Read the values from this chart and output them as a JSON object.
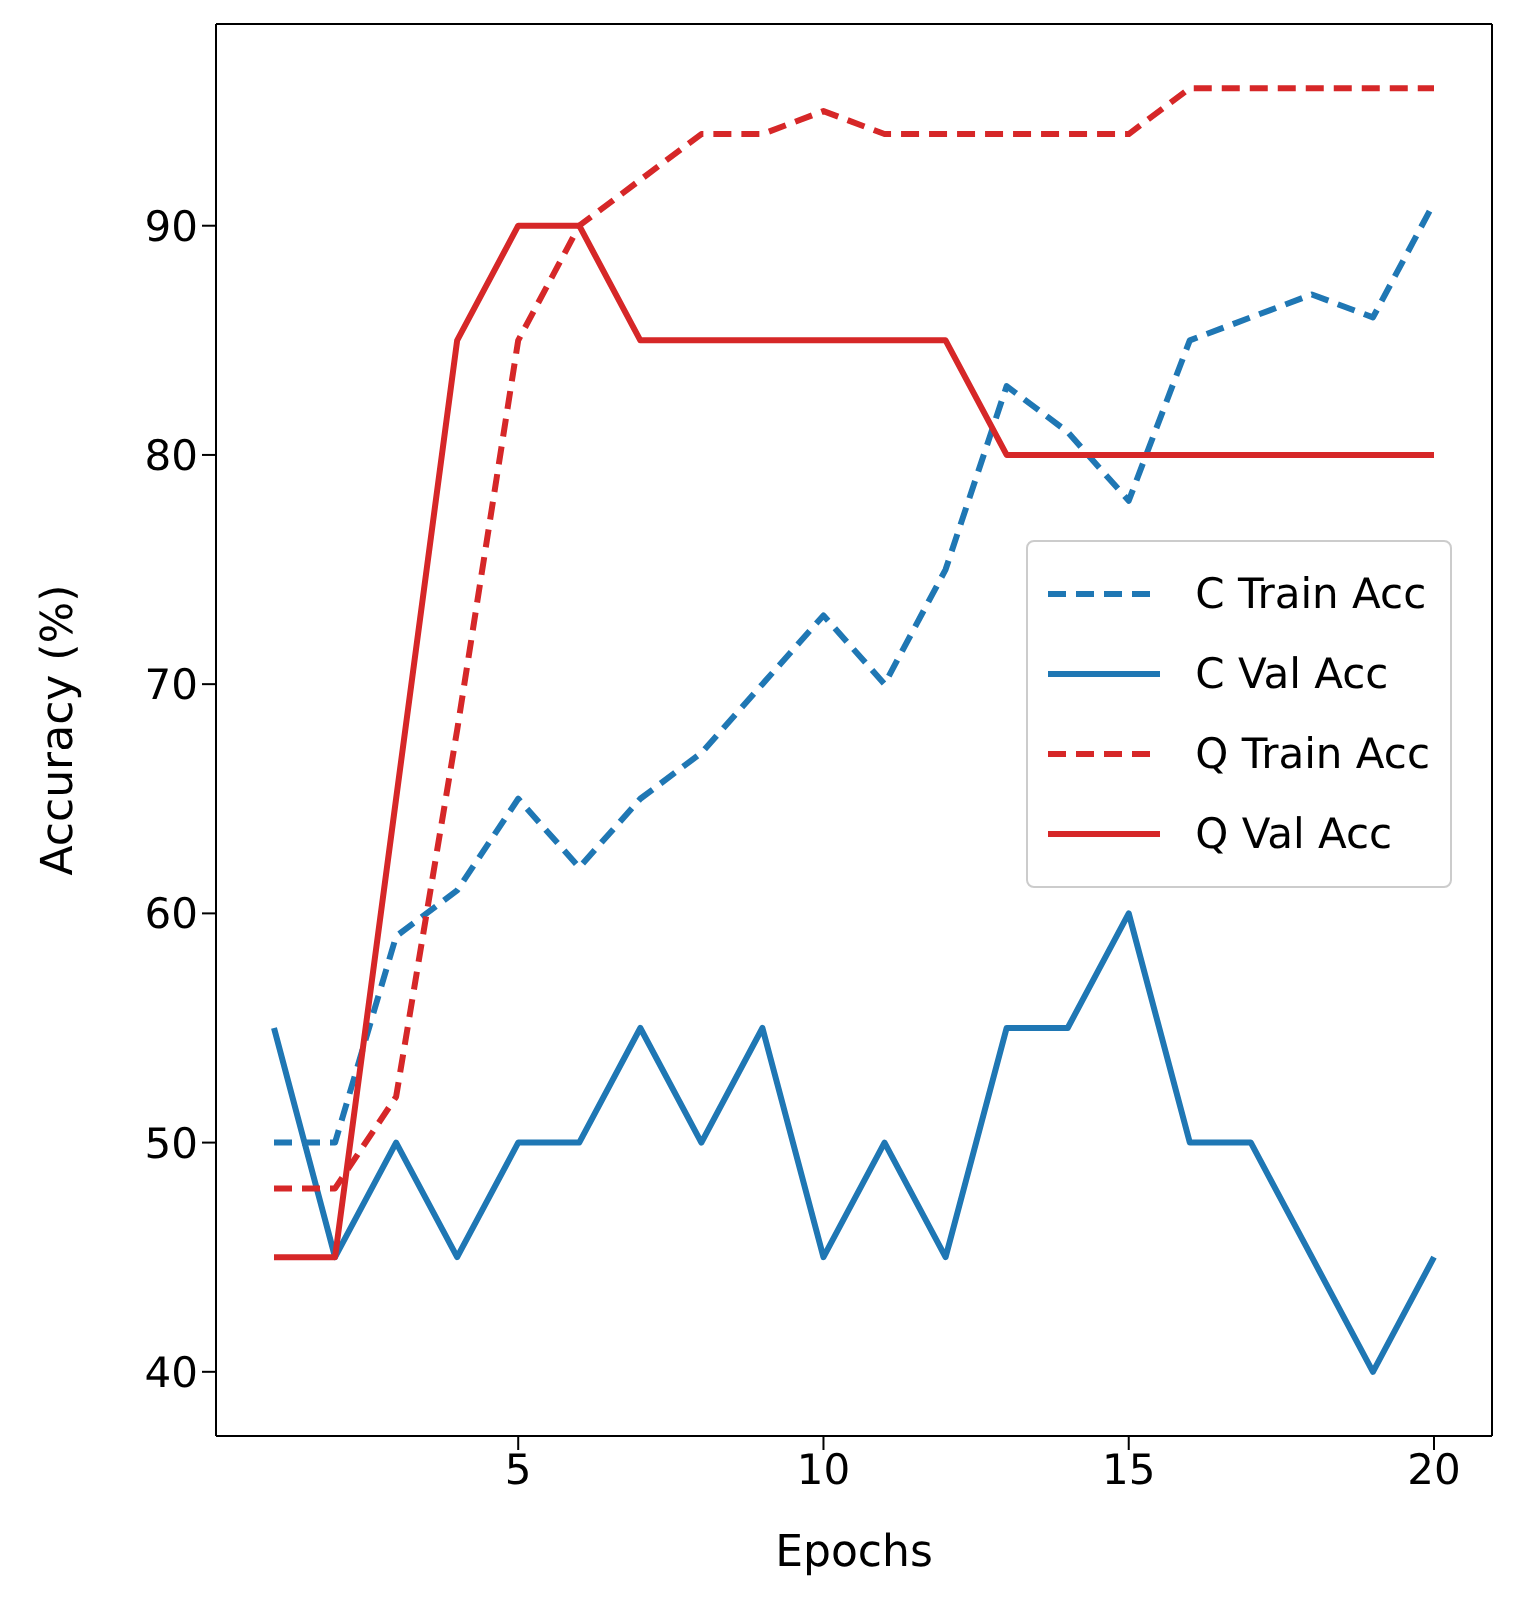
{
  "chart_data": {
    "type": "line",
    "xlabel": "Epochs",
    "ylabel": "Accuracy (%)",
    "x": [
      1,
      2,
      3,
      4,
      5,
      6,
      7,
      8,
      9,
      10,
      11,
      12,
      13,
      14,
      15,
      16,
      17,
      18,
      19,
      20
    ],
    "series": [
      {
        "name": "C Train Acc",
        "color": "#1f77b4",
        "line_style": "dashed",
        "values": [
          50,
          50,
          59,
          61,
          65,
          62,
          65,
          67,
          70,
          73,
          70,
          75,
          83,
          81,
          78,
          85,
          86,
          87,
          86,
          91
        ]
      },
      {
        "name": "C Val Acc",
        "color": "#1f77b4",
        "line_style": "solid",
        "values": [
          55,
          45,
          50,
          45,
          50,
          50,
          55,
          50,
          55,
          45,
          50,
          45,
          55,
          55,
          60,
          50,
          50,
          45,
          40,
          45
        ]
      },
      {
        "name": "Q Train Acc",
        "color": "#d62728",
        "line_style": "dashed",
        "values": [
          48,
          48,
          52,
          68,
          85,
          90,
          92,
          94,
          94,
          95,
          94,
          94,
          94,
          94,
          94,
          96,
          96,
          96,
          96,
          96
        ]
      },
      {
        "name": "Q Val Acc",
        "color": "#d62728",
        "line_style": "solid",
        "values": [
          45,
          45,
          65,
          85,
          90,
          90,
          85,
          85,
          85,
          85,
          85,
          85,
          80,
          80,
          80,
          80,
          80,
          80,
          80,
          80
        ]
      }
    ],
    "xlim": [
      0.05,
      20.95
    ],
    "xticks": [
      5,
      10,
      15,
      20
    ],
    "ylim": [
      37.2,
      98.8
    ],
    "yticks": [
      40,
      50,
      60,
      70,
      80,
      90
    ],
    "grid": false,
    "legend": "right",
    "marker": "none"
  }
}
